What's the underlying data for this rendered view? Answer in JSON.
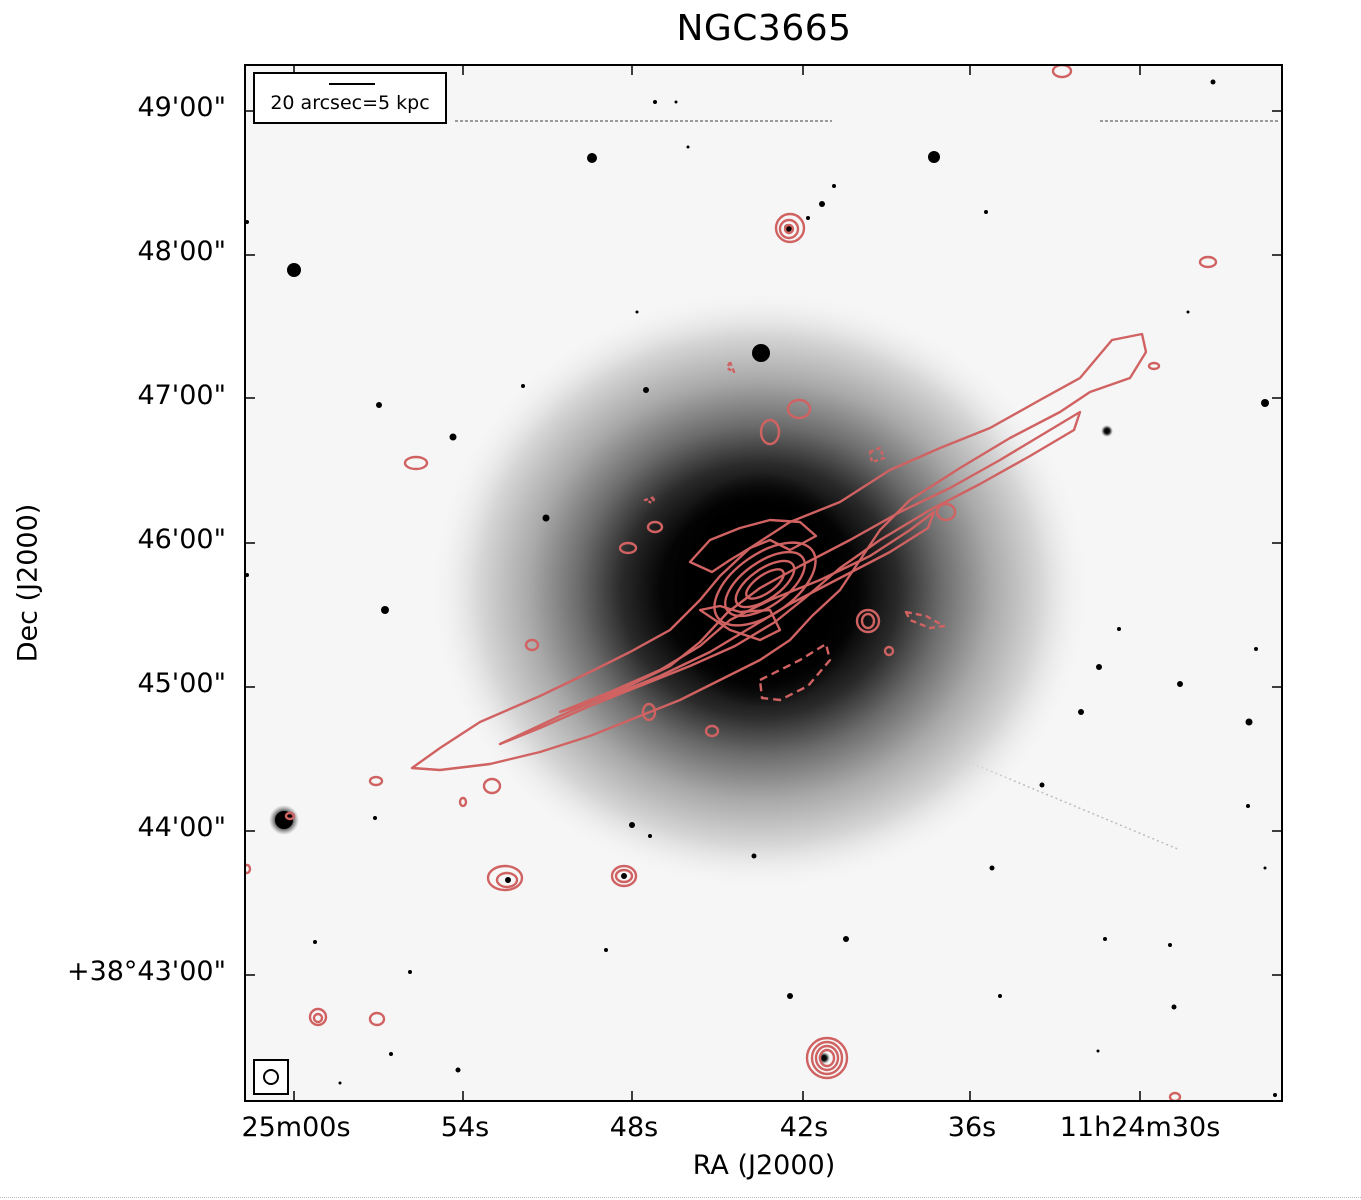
{
  "title": "NGC3665",
  "axes": {
    "xlabel": "RA (J2000)",
    "ylabel": "Dec (J2000)",
    "x_ticks": [
      "25m00s",
      "54s",
      "48s",
      "42s",
      "36s",
      "11h24m30s"
    ],
    "y_ticks": [
      "49'00\"",
      "48'00\"",
      "47'00\"",
      "46'00\"",
      "45'00\"",
      "44'00\"",
      "+38°43'00\""
    ]
  },
  "scale_bar": {
    "label": "20 arcsec=5 kpc"
  },
  "beam_marker": {
    "icon": "beam-ellipse-icon"
  },
  "colors": {
    "contour": "#d06262",
    "background": "#f7f7f7",
    "galaxy_core": "#000000"
  }
}
